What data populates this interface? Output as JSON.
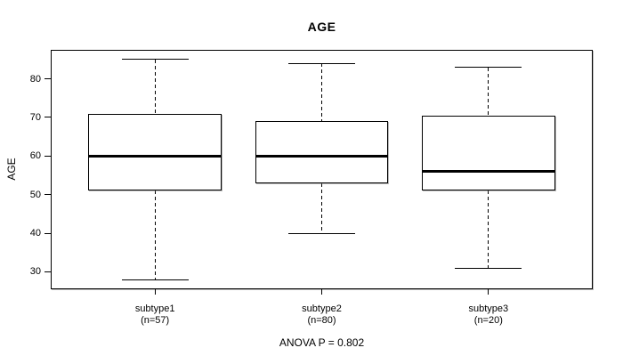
{
  "chart_data": {
    "type": "boxplot",
    "title": "AGE",
    "ylabel": "AGE",
    "xlabel": "",
    "annotation": "ANOVA P = 0.802",
    "ylim": [
      25.7,
      87.3
    ],
    "y_ticks": [
      30,
      40,
      50,
      60,
      70,
      80
    ],
    "grid": false,
    "categories": [
      "subtype1",
      "subtype2",
      "subtype3"
    ],
    "category_sublabels": [
      "(n=57)",
      "(n=80)",
      "(n=20)"
    ],
    "series": [
      {
        "name": "subtype1",
        "n": 57,
        "whisker_low": 28,
        "q1": 51,
        "median": 60,
        "q3": 71,
        "whisker_high": 85
      },
      {
        "name": "subtype2",
        "n": 80,
        "whisker_low": 40,
        "q1": 53,
        "median": 60,
        "q3": 69,
        "whisker_high": 84
      },
      {
        "name": "subtype3",
        "n": 20,
        "whisker_low": 31,
        "q1": 51,
        "median": 56,
        "q3": 70.5,
        "whisker_high": 83
      }
    ],
    "colors": {
      "line": "#000000",
      "fill": "#ffffff",
      "background": "#ffffff"
    }
  }
}
